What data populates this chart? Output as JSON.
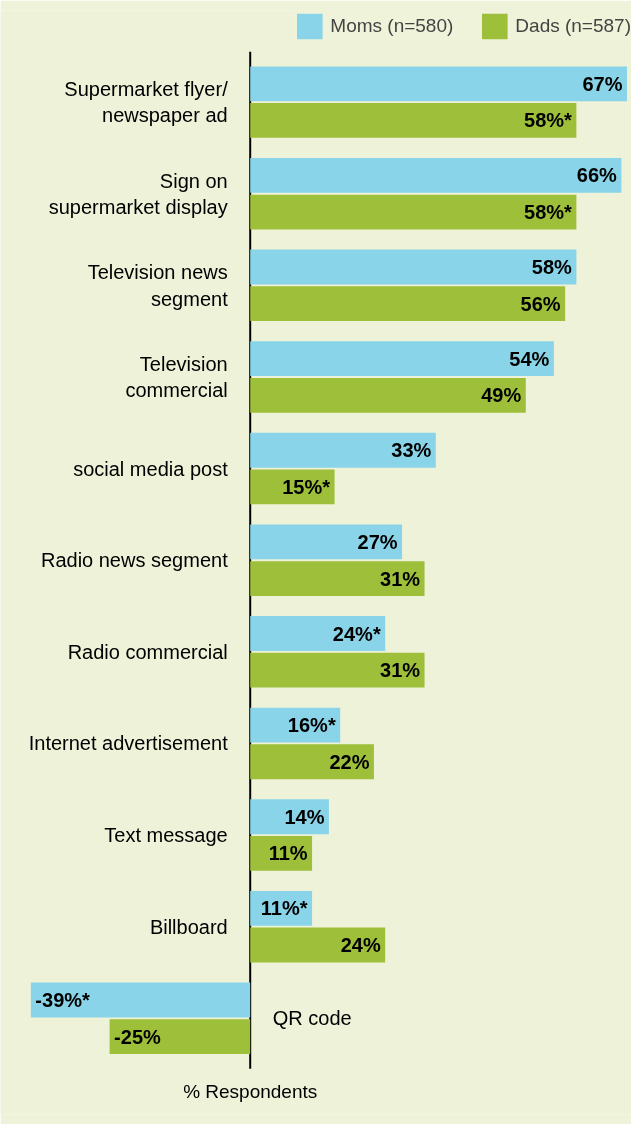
{
  "chart_data": {
    "type": "bar",
    "orientation": "horizontal",
    "xlabel": "% Respondents",
    "categories": [
      "Supermarket flyer/\nnewspaper ad",
      "Sign on\nsupermarket display",
      "Television news\nsegment",
      "Television\ncommercial",
      "social media post",
      "Radio news segment",
      "Radio commercial",
      "Internet advertisement",
      "Text message",
      "Billboard",
      "QR code"
    ],
    "series": [
      {
        "name": "Moms (n=580)",
        "color": "#89d4e8",
        "values": [
          67,
          66,
          58,
          54,
          33,
          27,
          24,
          16,
          14,
          11,
          -39
        ],
        "value_labels": [
          "67%",
          "66%",
          "58%",
          "54%",
          "33%",
          "27%",
          "24%*",
          "16%*",
          "14%",
          "11%*",
          "-39%*"
        ]
      },
      {
        "name": "Dads (n=587)",
        "color": "#9ebf3a",
        "values": [
          58,
          58,
          56,
          49,
          15,
          31,
          31,
          22,
          11,
          24,
          -25
        ],
        "value_labels": [
          "58%*",
          "58%*",
          "56%",
          "49%",
          "15%*",
          "31%",
          "31%",
          "22%",
          "11%",
          "24%",
          "-25%"
        ]
      }
    ],
    "xlim": [
      -44.4,
      67.8
    ],
    "tick_labels": false,
    "grid": false,
    "legend": "top right"
  }
}
